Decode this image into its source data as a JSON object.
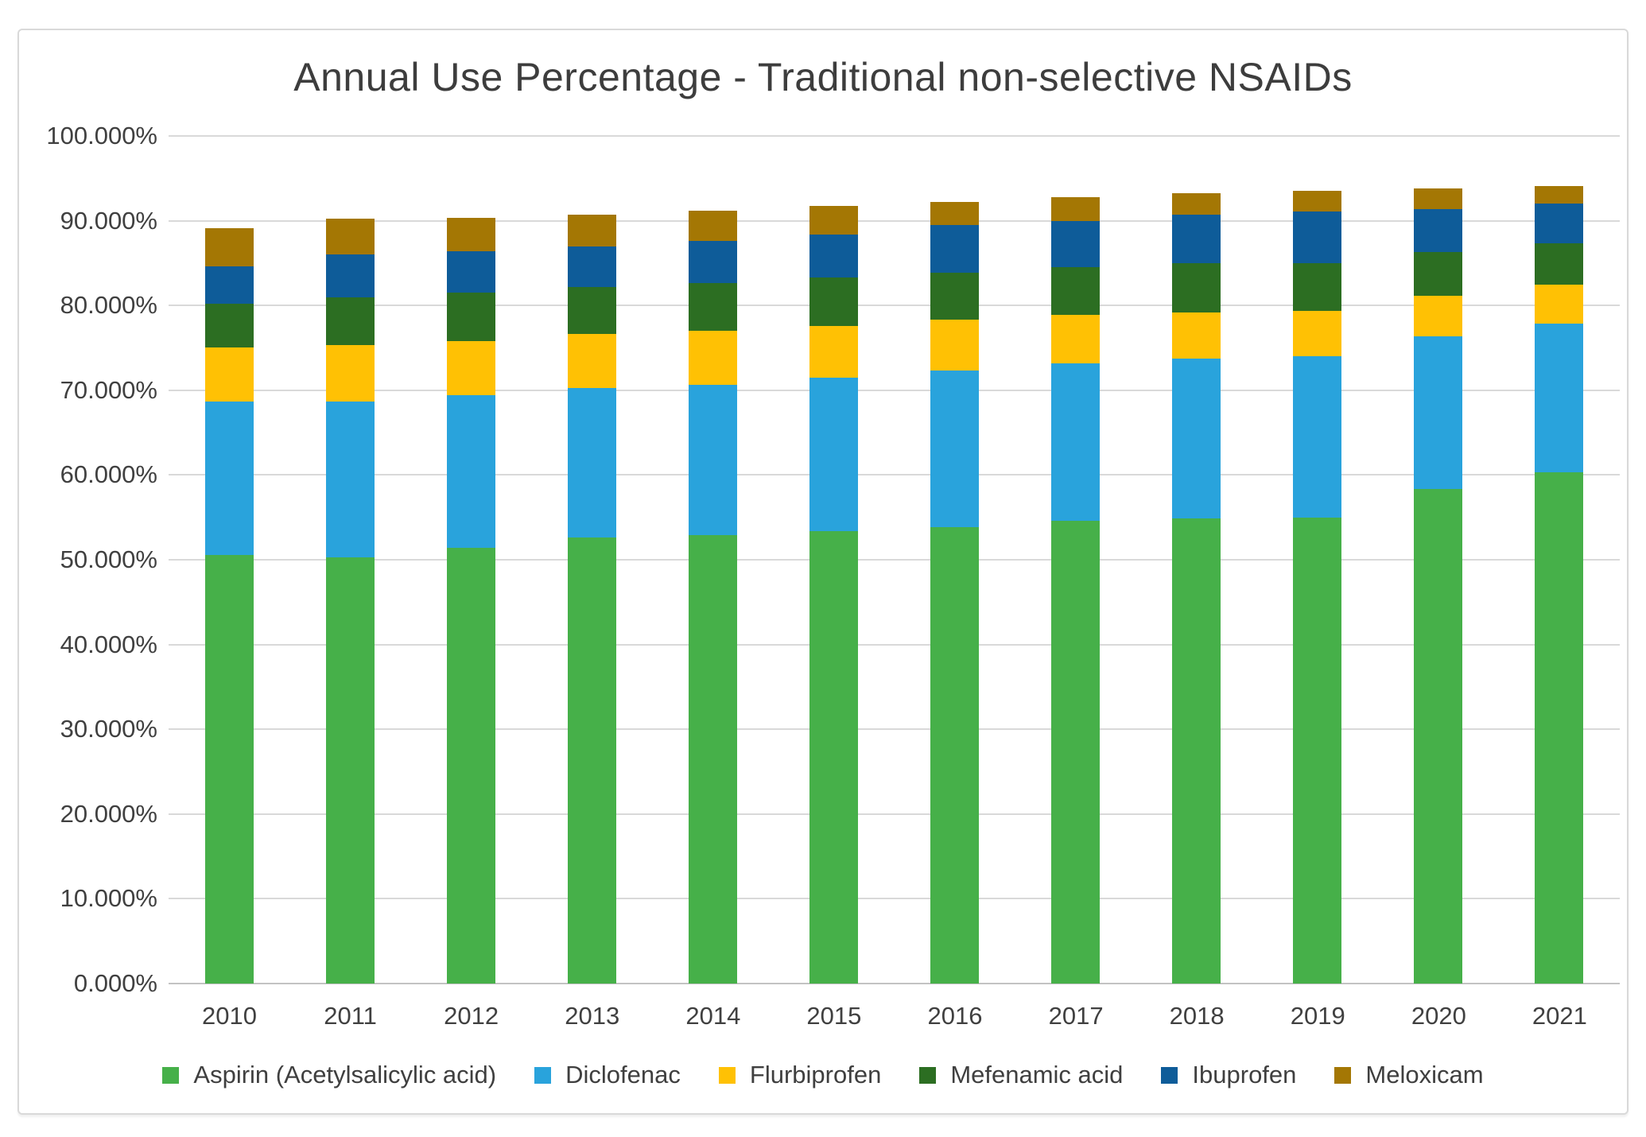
{
  "title": "Annual Use Percentage - Traditional non-selective NSAIDs",
  "colors": {
    "frame_border": "#D9D9D9",
    "gridline": "#D9D9D9",
    "axis_baseline": "#C3C3C3",
    "axis_text": "#404040",
    "title_text": "#3D3D3D"
  },
  "chart_data": {
    "type": "bar",
    "stacked": true,
    "title": "Annual Use Percentage - Traditional non-selective NSAIDs",
    "xlabel": "",
    "ylabel": "",
    "ylim": [
      0,
      100
    ],
    "grid": true,
    "legend_position": "bottom",
    "y_tick_labels": [
      "0.000%",
      "10.000%",
      "20.000%",
      "30.000%",
      "40.000%",
      "50.000%",
      "60.000%",
      "70.000%",
      "80.000%",
      "90.000%",
      "100.000%"
    ],
    "categories": [
      "2010",
      "2011",
      "2012",
      "2013",
      "2014",
      "2015",
      "2016",
      "2017",
      "2018",
      "2019",
      "2020",
      "2021"
    ],
    "series": [
      {
        "key": "aspirin",
        "name": "Aspirin (Acetylsalicylic acid)",
        "color": "#46B049",
        "values": [
          50.6,
          50.3,
          51.4,
          52.6,
          52.9,
          53.4,
          53.8,
          54.6,
          54.9,
          55.0,
          58.3,
          60.3
        ]
      },
      {
        "key": "diclofenac",
        "name": "Diclofenac",
        "color": "#29A3DC",
        "values": [
          18.1,
          18.4,
          18.0,
          17.7,
          17.7,
          18.1,
          18.5,
          18.6,
          18.8,
          19.0,
          18.1,
          17.6
        ]
      },
      {
        "key": "flurbiprofen",
        "name": "Flurbiprofen",
        "color": "#FFC104",
        "values": [
          6.3,
          6.6,
          6.4,
          6.3,
          6.4,
          6.1,
          6.0,
          5.7,
          5.5,
          5.4,
          4.7,
          4.6
        ]
      },
      {
        "key": "mefenamic-acid",
        "name": "Mefenamic acid",
        "color": "#2C6E22",
        "values": [
          5.2,
          5.7,
          5.7,
          5.6,
          5.6,
          5.7,
          5.6,
          5.6,
          5.8,
          5.6,
          5.2,
          4.8
        ]
      },
      {
        "key": "ibuprofen",
        "name": "Ibuprofen",
        "color": "#0E5C99",
        "values": [
          4.4,
          5.0,
          4.9,
          4.8,
          5.0,
          5.1,
          5.6,
          5.5,
          5.7,
          6.1,
          5.1,
          4.7
        ]
      },
      {
        "key": "meloxicam",
        "name": "Meloxicam",
        "color": "#A47704",
        "values": [
          4.5,
          4.2,
          3.9,
          3.7,
          3.6,
          3.3,
          2.7,
          2.8,
          2.5,
          2.4,
          2.4,
          2.1
        ]
      }
    ]
  }
}
